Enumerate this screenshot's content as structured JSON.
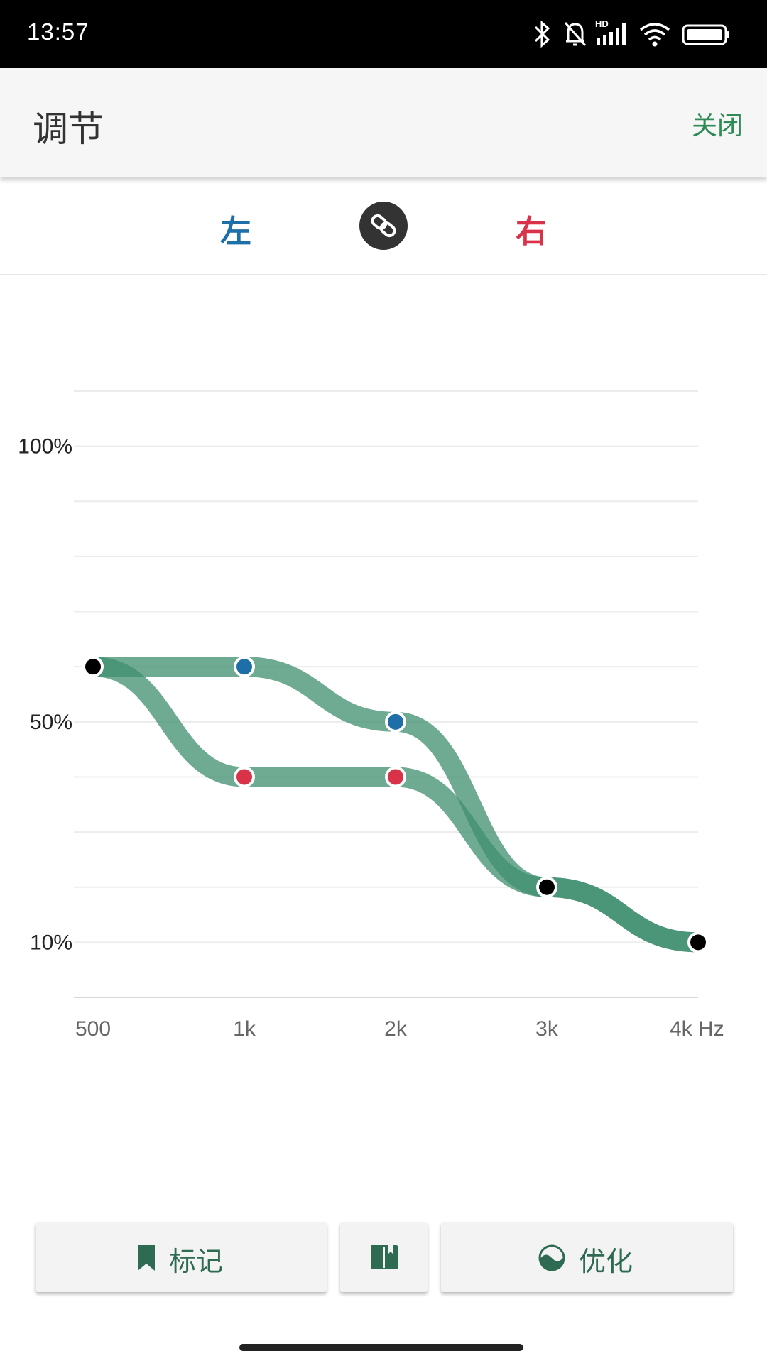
{
  "status_bar": {
    "time": "13:57",
    "icons": [
      "bluetooth-icon",
      "bell-off-icon",
      "hd-signal-icon",
      "wifi-icon",
      "battery-icon"
    ],
    "hd_label": "HD"
  },
  "header": {
    "title": "调节",
    "close_label": "关闭"
  },
  "channels": {
    "left_label": "左",
    "right_label": "右",
    "link_icon": "link-icon"
  },
  "colors": {
    "accent": "#2e8b57",
    "curve": "#3f8f6f",
    "left": "#1e6fa8",
    "right": "#d9334a",
    "point_neutral": "#000000"
  },
  "chart_data": {
    "type": "line",
    "x": [
      "500",
      "1k",
      "2k",
      "3k",
      "4k"
    ],
    "x_unit": "Hz",
    "y_ticks": [
      "100%",
      "50%",
      "10%"
    ],
    "ylim": [
      0,
      110
    ],
    "grid": true,
    "series": [
      {
        "name": "左",
        "values": [
          60,
          60,
          50,
          20,
          10
        ],
        "point_colors": [
          "#000000",
          "#1e6fa8",
          "#1e6fa8",
          "#000000",
          "#000000"
        ]
      },
      {
        "name": "右",
        "values": [
          60,
          40,
          40,
          20,
          10
        ],
        "point_colors": [
          "#000000",
          "#d9334a",
          "#d9334a",
          "#000000",
          "#000000"
        ]
      }
    ]
  },
  "actions": {
    "mark_label": "标记",
    "mark_icon": "bookmark-icon",
    "guide_icon": "book-icon",
    "optimize_label": "优化",
    "optimize_icon": "wave-icon"
  }
}
